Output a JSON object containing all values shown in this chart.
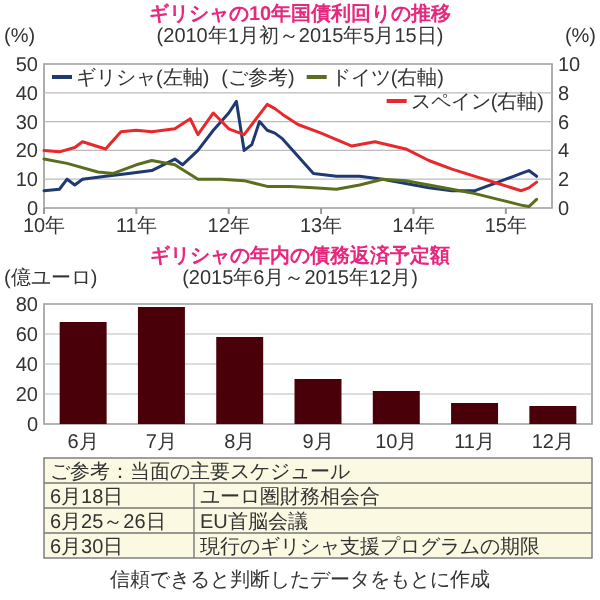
{
  "chart_data": [
    {
      "type": "line",
      "title": "ギリシャの10年国債利回りの推移",
      "subtitle": "(2010年1月初～2015年5月15日)",
      "ylabel": "(%)",
      "y2label": "(%)",
      "xlim": [
        "2010-01",
        "2015-07"
      ],
      "xticks": [
        {
          "value": "2010",
          "label": "10年"
        },
        {
          "value": "2011",
          "label": "11年"
        },
        {
          "value": "2012",
          "label": "12年"
        },
        {
          "value": "2013",
          "label": "13年"
        },
        {
          "value": "2014",
          "label": "14年"
        },
        {
          "value": "2015",
          "label": "15年"
        }
      ],
      "ylim": [
        0,
        50
      ],
      "yticks": [
        0,
        10,
        20,
        30,
        40,
        50
      ],
      "y2lim": [
        0,
        10
      ],
      "y2ticks": [
        0,
        2,
        4,
        6,
        8,
        10
      ],
      "grid": "y",
      "legend": "top",
      "series": [
        {
          "name": "ギリシャ(左軸)",
          "color": "#1f3a70",
          "x": [
            "2010-01",
            "2010-03",
            "2010-04",
            "2010-05",
            "2010-06",
            "2010-09",
            "2010-12",
            "2011-03",
            "2011-06",
            "2011-07",
            "2011-09",
            "2011-11",
            "2012-01",
            "2012-02",
            "2012-03",
            "2012-04",
            "2012-05",
            "2012-06",
            "2012-07",
            "2012-08",
            "2012-10",
            "2012-12",
            "2013-03",
            "2013-06",
            "2013-09",
            "2013-12",
            "2014-03",
            "2014-06",
            "2014-09",
            "2014-12",
            "2015-01",
            "2015-02",
            "2015-03",
            "2015-04",
            "2015-05"
          ],
          "values": [
            6,
            6.5,
            10,
            8,
            10,
            11,
            12,
            13,
            17,
            15,
            20,
            27,
            33,
            37,
            20,
            22,
            30,
            27,
            26,
            24,
            18,
            12,
            11,
            11,
            10,
            8.5,
            7,
            6,
            6,
            9,
            10,
            11,
            12,
            13,
            11
          ]
        },
        {
          "name": "ドイツ(右軸)",
          "color": "#5a6e1e",
          "axis": "y2",
          "x": [
            "2010-01",
            "2010-04",
            "2010-08",
            "2010-10",
            "2011-01",
            "2011-03",
            "2011-06",
            "2011-09",
            "2011-12",
            "2012-03",
            "2012-06",
            "2012-09",
            "2012-12",
            "2013-03",
            "2013-06",
            "2013-09",
            "2013-12",
            "2014-03",
            "2014-06",
            "2014-09",
            "2014-12",
            "2015-03",
            "2015-04",
            "2015-05"
          ],
          "values": [
            3.4,
            3.1,
            2.5,
            2.4,
            3.0,
            3.3,
            3.0,
            2.0,
            2.0,
            1.9,
            1.5,
            1.5,
            1.4,
            1.3,
            1.6,
            2.0,
            1.9,
            1.6,
            1.3,
            1.0,
            0.6,
            0.2,
            0.1,
            0.6
          ]
        },
        {
          "name": "スペイン(右軸)",
          "color": "#e8282a",
          "axis": "y2",
          "x": [
            "2010-01",
            "2010-03",
            "2010-05",
            "2010-06",
            "2010-09",
            "2010-11",
            "2011-01",
            "2011-03",
            "2011-06",
            "2011-08",
            "2011-09",
            "2011-11",
            "2012-01",
            "2012-03",
            "2012-06",
            "2012-07",
            "2012-08",
            "2012-10",
            "2013-01",
            "2013-05",
            "2013-08",
            "2013-12",
            "2014-03",
            "2014-06",
            "2014-09",
            "2014-12",
            "2015-03",
            "2015-04",
            "2015-05"
          ],
          "values": [
            4.0,
            3.9,
            4.2,
            4.6,
            4.1,
            5.3,
            5.4,
            5.3,
            5.5,
            6.2,
            5.1,
            6.6,
            5.5,
            5.1,
            7.2,
            6.9,
            6.5,
            5.8,
            5.2,
            4.3,
            4.6,
            4.1,
            3.3,
            2.7,
            2.2,
            1.7,
            1.2,
            1.4,
            1.8
          ]
        }
      ],
      "annotations": [
        "(ご参考)",
        "信頼できると判断したデータをもとに作成"
      ]
    },
    {
      "type": "bar",
      "title": "ギリシャの年内の債務返済予定額",
      "subtitle": "(2015年6月～2015年12月)",
      "ylabel": "(億ユーロ)",
      "categories": [
        "6月",
        "7月",
        "8月",
        "9月",
        "10月",
        "11月",
        "12月"
      ],
      "values": [
        68,
        78,
        58,
        30,
        22,
        14,
        12
      ],
      "color": "#4a0008",
      "ylim": [
        0,
        80
      ],
      "yticks": [
        0,
        20,
        40,
        60,
        80
      ],
      "grid": "y",
      "annotations": [
        "ご参考：当面の主要スケジュール",
        "6月18日",
        "ユーロ圏財務相会合",
        "6月25～26日",
        "EU首脳会議",
        "6月30日",
        "現行のギリシャ支援プログラムの期限"
      ]
    }
  ]
}
